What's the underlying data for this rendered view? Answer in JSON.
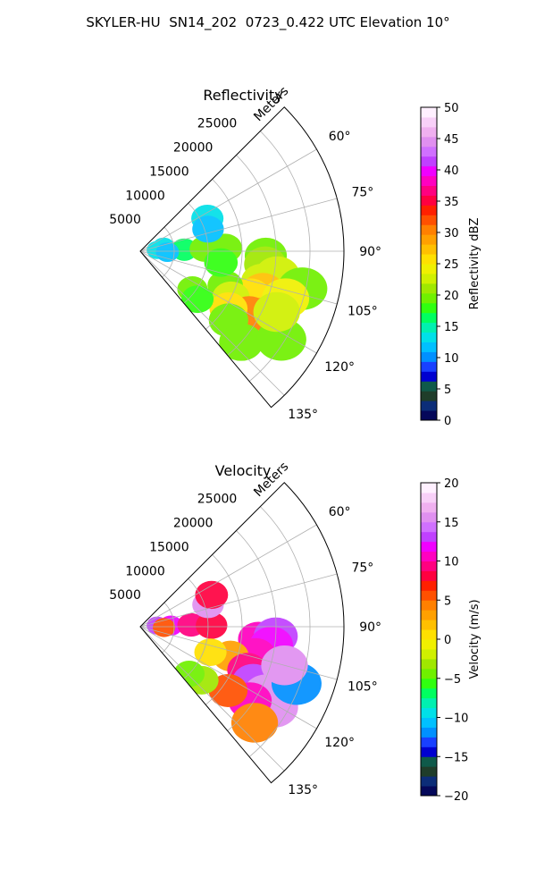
{
  "suptitle": "SKYLER-HU  SN14_202  0723_0.422 UTC Elevation 10°",
  "chart_data": [
    {
      "type": "polar_sector",
      "title": "Reflectivity",
      "range_label": "Meters",
      "theta_range_deg": [
        45,
        140
      ],
      "r_max": 30000,
      "range_ticks": [
        5000,
        10000,
        15000,
        20000,
        25000
      ],
      "range_tick_labels": [
        "5000",
        "10000",
        "15000",
        "20000",
        "25000"
      ],
      "angle_ticks": [
        60,
        75,
        90,
        105,
        120,
        135
      ],
      "angle_tick_labels": [
        "60°",
        "75°",
        "90°",
        "105°",
        "120°",
        "135°"
      ],
      "grid": true,
      "colorbar": {
        "label": "Reflectivity dBZ",
        "range": [
          0,
          50
        ],
        "ticks": [
          0,
          5,
          10,
          15,
          20,
          25,
          30,
          35,
          40,
          45,
          50
        ],
        "tick_labels": [
          "0",
          "5",
          "10",
          "15",
          "20",
          "25",
          "30",
          "35",
          "40",
          "45",
          "50"
        ],
        "colors": [
          "#05085a",
          "#0c2d78",
          "#1f3d2a",
          "#0f5a4a",
          "#0000d0",
          "#1840ff",
          "#0090ff",
          "#00c0ff",
          "#00e0e8",
          "#00f0b0",
          "#00ff60",
          "#30ff10",
          "#70f000",
          "#a0e800",
          "#d0f000",
          "#f0f000",
          "#ffe000",
          "#ffc000",
          "#ffa000",
          "#ff8000",
          "#ff5000",
          "#ff2000",
          "#ff0040",
          "#ff0080",
          "#ff00c0",
          "#f000ff",
          "#c040ff",
          "#d070ff",
          "#e090f0",
          "#f0b0f0",
          "#f8d0f8",
          "#fff0ff"
        ]
      },
      "echo_cells": [
        {
          "az": 80,
          "r": 3500,
          "value": 13
        },
        {
          "az": 86,
          "r": 2500,
          "value": 14
        },
        {
          "az": 88,
          "r": 6500,
          "value": 17
        },
        {
          "az": 88,
          "r": 9500,
          "value": 20
        },
        {
          "az": 88,
          "r": 12500,
          "value": 20
        },
        {
          "az": 92,
          "r": 4000,
          "value": 12
        },
        {
          "az": 64,
          "r": 11000,
          "value": 13
        },
        {
          "az": 72,
          "r": 10500,
          "value": 12
        },
        {
          "az": 92,
          "r": 18500,
          "value": 20
        },
        {
          "az": 96,
          "r": 18500,
          "value": 21
        },
        {
          "az": 100,
          "r": 20500,
          "value": 22
        },
        {
          "az": 104,
          "r": 18500,
          "value": 22
        },
        {
          "az": 108,
          "r": 19000,
          "value": 27
        },
        {
          "az": 112,
          "r": 17500,
          "value": 25
        },
        {
          "az": 112,
          "r": 13500,
          "value": 20
        },
        {
          "az": 117,
          "r": 15000,
          "value": 23
        },
        {
          "az": 118,
          "r": 20500,
          "value": 29
        },
        {
          "az": 120,
          "r": 18500,
          "value": 30
        },
        {
          "az": 123,
          "r": 15500,
          "value": 26
        },
        {
          "az": 128,
          "r": 16500,
          "value": 20
        },
        {
          "az": 132,
          "r": 20000,
          "value": 19
        },
        {
          "az": 122,
          "r": 24500,
          "value": 20
        },
        {
          "az": 126,
          "r": 9500,
          "value": 20
        },
        {
          "az": 130,
          "r": 11000,
          "value": 18
        },
        {
          "az": 103,
          "r": 24500,
          "value": 19
        },
        {
          "az": 98,
          "r": 12000,
          "value": 18
        },
        {
          "az": 108,
          "r": 22500,
          "value": 24
        },
        {
          "az": 114,
          "r": 22000,
          "value": 22
        }
      ]
    },
    {
      "type": "polar_sector",
      "title": "Velocity",
      "range_label": "Meters",
      "theta_range_deg": [
        45,
        140
      ],
      "r_max": 30000,
      "range_ticks": [
        5000,
        10000,
        15000,
        20000,
        25000
      ],
      "range_tick_labels": [
        "5000",
        "10000",
        "15000",
        "20000",
        "25000"
      ],
      "angle_ticks": [
        60,
        75,
        90,
        105,
        120,
        135
      ],
      "angle_tick_labels": [
        "60°",
        "75°",
        "90°",
        "105°",
        "120°",
        "135°"
      ],
      "grid": true,
      "colorbar": {
        "label": "Velocity (m/s)",
        "range": [
          -20,
          20
        ],
        "ticks": [
          -20,
          -15,
          -10,
          -5,
          0,
          5,
          10,
          15,
          20
        ],
        "tick_labels": [
          "−20",
          "−15",
          "−10",
          "−5",
          "0",
          "5",
          "10",
          "15",
          "20"
        ],
        "colors": [
          "#05085a",
          "#0c2d78",
          "#1f3d2a",
          "#0f5a4a",
          "#0000d0",
          "#1840ff",
          "#0090ff",
          "#00c0ff",
          "#00e0e8",
          "#00f0b0",
          "#00ff60",
          "#30ff10",
          "#70f000",
          "#a0e800",
          "#d0f000",
          "#f0f000",
          "#ffe000",
          "#ffc000",
          "#ffa000",
          "#ff8000",
          "#ff5000",
          "#ff2000",
          "#ff0040",
          "#ff0080",
          "#ff00c0",
          "#f000ff",
          "#c040ff",
          "#d070ff",
          "#e090f0",
          "#f0b0f0",
          "#f8d0f8",
          "#fff0ff"
        ]
      },
      "echo_cells": [
        {
          "az": 86,
          "r": 2500,
          "value": 13
        },
        {
          "az": 88,
          "r": 4500,
          "value": 12
        },
        {
          "az": 88,
          "r": 7500,
          "value": 9
        },
        {
          "az": 89,
          "r": 10500,
          "value": 8
        },
        {
          "az": 92,
          "r": 3500,
          "value": 6
        },
        {
          "az": 72,
          "r": 10500,
          "value": 15
        },
        {
          "az": 66,
          "r": 11500,
          "value": 8
        },
        {
          "az": 96,
          "r": 17500,
          "value": 10
        },
        {
          "az": 94,
          "r": 20000,
          "value": 13
        },
        {
          "az": 98,
          "r": 19500,
          "value": 12
        },
        {
          "az": 104,
          "r": 17500,
          "value": 10
        },
        {
          "az": 108,
          "r": 14000,
          "value": 3
        },
        {
          "az": 110,
          "r": 11000,
          "value": 1
        },
        {
          "az": 112,
          "r": 17000,
          "value": 9
        },
        {
          "az": 116,
          "r": 18500,
          "value": 13
        },
        {
          "az": 118,
          "r": 21000,
          "value": 16
        },
        {
          "az": 121,
          "r": 23000,
          "value": 16
        },
        {
          "az": 124,
          "r": 19500,
          "value": 10
        },
        {
          "az": 126,
          "r": 16000,
          "value": 6
        },
        {
          "az": 130,
          "r": 22000,
          "value": 4
        },
        {
          "az": 131,
          "r": 12000,
          "value": -3
        },
        {
          "az": 134,
          "r": 10000,
          "value": -4
        },
        {
          "az": 110,
          "r": 24500,
          "value": -12
        },
        {
          "az": 105,
          "r": 22000,
          "value": 15
        }
      ]
    }
  ]
}
